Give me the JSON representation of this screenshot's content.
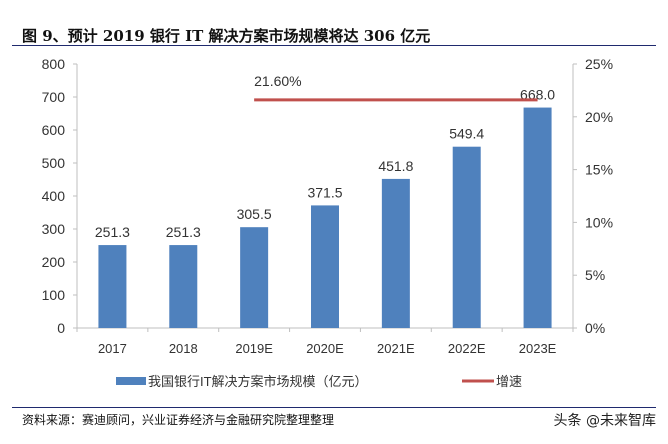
{
  "title": "图 9、预计 2019 银行 IT 解决方案市场规模将达 306 亿元",
  "source": "资料来源：赛迪顾问，兴业证券经济与金融研究院整理整理",
  "watermark": "头条 @未来智库",
  "chart_data": {
    "type": "bar",
    "categories": [
      "2017",
      "2018",
      "2019E",
      "2020E",
      "2021E",
      "2022E",
      "2023E"
    ],
    "series": [
      {
        "name": "我国银行IT解决方案市场规模（亿元）",
        "type": "bar",
        "axis": "left",
        "values": [
          251.3,
          251.3,
          305.5,
          371.5,
          451.8,
          549.4,
          668.0
        ],
        "labels": [
          "251.3",
          "251.3",
          "305.5",
          "371.5",
          "451.8",
          "549.4",
          "668.0"
        ],
        "color": "#4f81bd"
      },
      {
        "name": "增速",
        "type": "line",
        "axis": "right",
        "values": [
          null,
          null,
          21.6,
          21.6,
          21.6,
          21.6,
          21.6
        ],
        "label": "21.60%",
        "color": "#c0504d"
      }
    ],
    "y_left": {
      "ylim": [
        0,
        800
      ],
      "ticks": [
        "0",
        "100",
        "200",
        "300",
        "400",
        "500",
        "600",
        "700",
        "800"
      ]
    },
    "y_right": {
      "ylim": [
        0,
        25
      ],
      "ticks": [
        "0%",
        "5%",
        "10%",
        "15%",
        "20%",
        "25%"
      ]
    },
    "grid": false,
    "legend": "bottom"
  }
}
